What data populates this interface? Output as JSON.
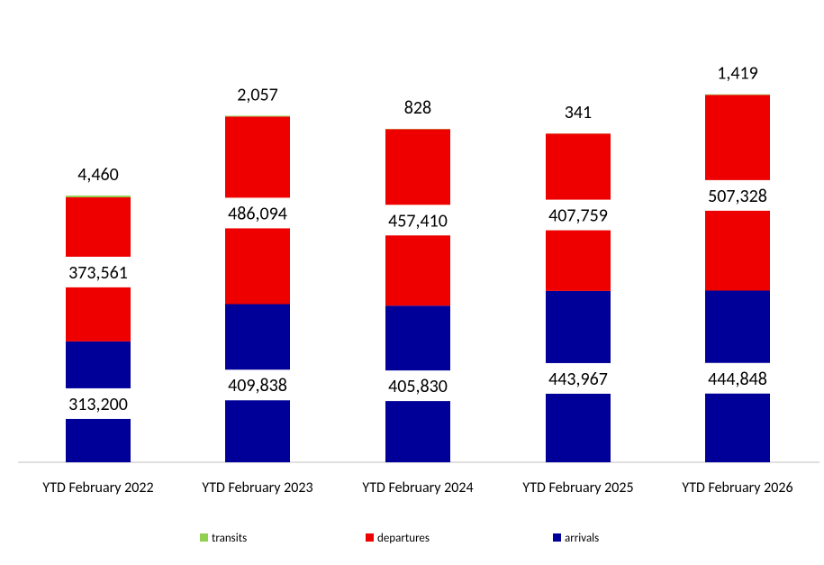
{
  "chart_data": {
    "type": "bar",
    "stacked": true,
    "categories": [
      "YTD February 2022",
      "YTD February 2023",
      "YTD February 2024",
      "YTD February 2025",
      "YTD February 2026"
    ],
    "series": [
      {
        "name": "arrivals",
        "color": "#000099",
        "values": [
          313200,
          409838,
          405830,
          443967,
          444848
        ],
        "labels": [
          "313,200",
          "409,838",
          "405,830",
          "443,967",
          "444,848"
        ]
      },
      {
        "name": "departures",
        "color": "#EE0000",
        "values": [
          373561,
          486094,
          457410,
          407759,
          507328
        ],
        "labels": [
          "373,561",
          "486,094",
          "457,410",
          "407,759",
          "507,328"
        ]
      },
      {
        "name": "transits",
        "color": "#92D050",
        "values": [
          4460,
          2057,
          828,
          341,
          1419
        ],
        "labels": [
          "4,460",
          "2,057",
          "828",
          "341",
          "1,419"
        ]
      }
    ],
    "title": "",
    "xlabel": "",
    "ylabel": "",
    "ylim": [
      0,
      1200000
    ],
    "grid": false,
    "legend": "bottom"
  }
}
